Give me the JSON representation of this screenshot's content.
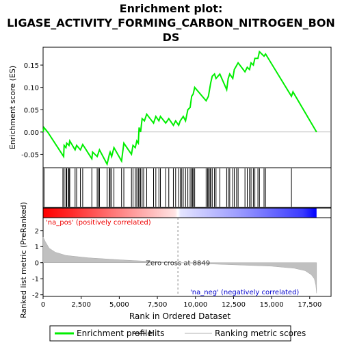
{
  "chart_data": {
    "type": "line",
    "title": "Enrichment plot: LIGASE_ACTIVITY_FORMING_CARBON_NITROGEN_BONDS",
    "title_lines": [
      "Enrichment plot:",
      "LIGASE_ACTIVITY_FORMING_CARBON_NITROGEN_BON",
      "DS"
    ],
    "top_panel": {
      "ylabel": "Enrichment score (ES)",
      "ylim": [
        -0.08,
        0.19
      ],
      "yticks": [
        -0.05,
        0.0,
        0.05,
        0.1,
        0.15
      ],
      "ytick_labels": [
        "-0.05",
        "0.00",
        "0.05",
        "0.10",
        "0.15"
      ],
      "xlim": [
        0,
        18900
      ],
      "grid": false,
      "series": [
        {
          "name": "Enrichment profile",
          "color": "#00ee00",
          "points": [
            [
              0,
              0.0
            ],
            [
              60,
              0.01
            ],
            [
              300,
              0.0
            ],
            [
              1350,
              -0.055
            ],
            [
              1380,
              -0.03
            ],
            [
              1500,
              -0.035
            ],
            [
              1550,
              -0.025
            ],
            [
              1700,
              -0.03
            ],
            [
              1750,
              -0.02
            ],
            [
              2100,
              -0.04
            ],
            [
              2200,
              -0.03
            ],
            [
              2450,
              -0.04
            ],
            [
              2600,
              -0.028
            ],
            [
              3200,
              -0.06
            ],
            [
              3250,
              -0.045
            ],
            [
              3550,
              -0.055
            ],
            [
              3700,
              -0.04
            ],
            [
              4200,
              -0.072
            ],
            [
              4350,
              -0.05
            ],
            [
              4400,
              -0.045
            ],
            [
              4500,
              -0.055
            ],
            [
              4650,
              -0.035
            ],
            [
              5150,
              -0.065
            ],
            [
              5300,
              -0.025
            ],
            [
              5800,
              -0.05
            ],
            [
              5900,
              -0.03
            ],
            [
              6050,
              -0.035
            ],
            [
              6150,
              -0.02
            ],
            [
              6250,
              -0.025
            ],
            [
              6300,
              0.01
            ],
            [
              6400,
              0.0
            ],
            [
              6500,
              0.03
            ],
            [
              6650,
              0.025
            ],
            [
              6800,
              0.04
            ],
            [
              7250,
              0.02
            ],
            [
              7400,
              0.035
            ],
            [
              7600,
              0.025
            ],
            [
              7700,
              0.035
            ],
            [
              8050,
              0.02
            ],
            [
              8250,
              0.03
            ],
            [
              8550,
              0.015
            ],
            [
              8700,
              0.025
            ],
            [
              8900,
              0.015
            ],
            [
              9000,
              0.025
            ],
            [
              9200,
              0.035
            ],
            [
              9350,
              0.025
            ],
            [
              9500,
              0.05
            ],
            [
              9650,
              0.055
            ],
            [
              9750,
              0.08
            ],
            [
              9850,
              0.085
            ],
            [
              9950,
              0.1
            ],
            [
              10700,
              0.07
            ],
            [
              10850,
              0.08
            ],
            [
              11000,
              0.11
            ],
            [
              11100,
              0.125
            ],
            [
              11250,
              0.13
            ],
            [
              11350,
              0.12
            ],
            [
              11600,
              0.13
            ],
            [
              12050,
              0.095
            ],
            [
              12150,
              0.12
            ],
            [
              12250,
              0.13
            ],
            [
              12450,
              0.12
            ],
            [
              12550,
              0.14
            ],
            [
              12800,
              0.155
            ],
            [
              13250,
              0.135
            ],
            [
              13400,
              0.145
            ],
            [
              13550,
              0.14
            ],
            [
              13650,
              0.155
            ],
            [
              13800,
              0.15
            ],
            [
              13900,
              0.165
            ],
            [
              14100,
              0.165
            ],
            [
              14200,
              0.18
            ],
            [
              14500,
              0.17
            ],
            [
              14600,
              0.175
            ],
            [
              16300,
              0.08
            ],
            [
              16400,
              0.09
            ],
            [
              17950,
              0.0
            ]
          ]
        }
      ]
    },
    "hits": [
      60,
      1300,
      1380,
      1500,
      1550,
      1650,
      1700,
      1750,
      2100,
      2200,
      2450,
      2600,
      3200,
      3550,
      3650,
      3700,
      4200,
      4350,
      4400,
      4500,
      4650,
      5150,
      5300,
      5800,
      5900,
      6050,
      6150,
      6250,
      6300,
      6400,
      6500,
      6600,
      6800,
      7250,
      7400,
      7600,
      7700,
      8050,
      8250,
      8550,
      8700,
      8900,
      9000,
      9100,
      9200,
      9350,
      9500,
      9650,
      9750,
      9800,
      9850,
      9950,
      10700,
      10800,
      10850,
      10950,
      11000,
      11100,
      11250,
      11350,
      11600,
      12050,
      12150,
      12250,
      12450,
      12550,
      12700,
      12800,
      13250,
      13400,
      13550,
      13650,
      13800,
      13900,
      14100,
      14200,
      14500,
      14600,
      16300
    ],
    "bottom_panel": {
      "ylabel": "Ranked list metric (PreRanked)",
      "xlabel": "Rank in Ordered Dataset",
      "ylim": [
        -2.1,
        2.8
      ],
      "yticks": [
        -2,
        -1,
        0,
        1,
        2
      ],
      "ytick_labels": [
        "-2",
        "-1",
        "0",
        "1",
        "2"
      ],
      "xticks": [
        0,
        2500,
        5000,
        7500,
        10000,
        12500,
        15000,
        17500
      ],
      "xtick_labels": [
        "0",
        "2,500",
        "5,000",
        "7,500",
        "10,000",
        "12,500",
        "15,000",
        "17,500"
      ],
      "fill_color": "#c0c0c0",
      "metric_points": [
        [
          0,
          1.6
        ],
        [
          150,
          1.3
        ],
        [
          400,
          0.9
        ],
        [
          800,
          0.65
        ],
        [
          1500,
          0.45
        ],
        [
          3000,
          0.3
        ],
        [
          5000,
          0.18
        ],
        [
          7000,
          0.08
        ],
        [
          8849,
          0.0
        ],
        [
          11000,
          -0.08
        ],
        [
          13000,
          -0.15
        ],
        [
          15000,
          -0.22
        ],
        [
          16500,
          -0.35
        ],
        [
          17200,
          -0.5
        ],
        [
          17600,
          -0.75
        ],
        [
          17800,
          -1.0
        ],
        [
          17900,
          -1.4
        ],
        [
          17950,
          -1.9
        ]
      ],
      "zero_cross_label": "Zero cross at 8849",
      "zero_cross_x": 8849,
      "pos_label": "'na_pos' (positively correlated)",
      "neg_label": "'na_neg' (negatively correlated)",
      "pos_label_color": "#ee0000",
      "neg_label_color": "#0000cc"
    },
    "color_bar": {
      "start_color": "#ff0000",
      "end_color": "#0000ff",
      "zero_cross_x": 8849
    },
    "legend": {
      "position": "bottom",
      "entries": [
        {
          "label": "Enrichment profile",
          "color": "#00ee00",
          "style": "line"
        },
        {
          "label": "Hits",
          "color": "#000000",
          "style": "line"
        },
        {
          "label": "Ranking metric scores",
          "color": "#c0c0c0",
          "style": "line"
        }
      ]
    }
  }
}
